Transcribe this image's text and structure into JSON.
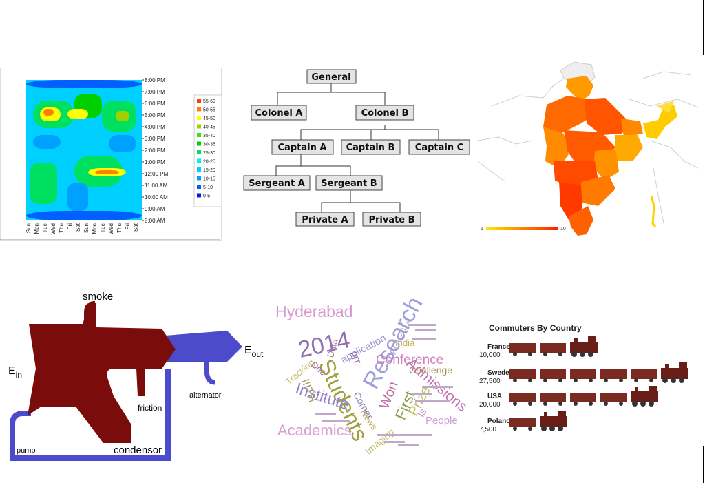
{
  "heatmap": {
    "time_labels": [
      "8:00 PM",
      "7:00 PM",
      "6:00 PM",
      "5:00 PM",
      "4:00 PM",
      "3:00 PM",
      "2:00 PM",
      "1:00 PM",
      "12:00 PM",
      "11:00 AM",
      "10:00 AM",
      "9:00 AM",
      "8:00 AM"
    ],
    "day_labels": [
      "Sun",
      "Mon",
      "Tue",
      "Wed",
      "Thu",
      "Fri",
      "Sat",
      "Sun",
      "Mon",
      "Tue",
      "Wed",
      "Thu",
      "Fri",
      "Sat"
    ],
    "legend": [
      {
        "label": "55-60",
        "color": "#ff4000"
      },
      {
        "label": "50-55",
        "color": "#ff8000"
      },
      {
        "label": "45-50",
        "color": "#ffff00"
      },
      {
        "label": "40-45",
        "color": "#a0d000"
      },
      {
        "label": "35-40",
        "color": "#40e000"
      },
      {
        "label": "30-35",
        "color": "#00d000"
      },
      {
        "label": "25-30",
        "color": "#00e060"
      },
      {
        "label": "20-25",
        "color": "#00f0f0"
      },
      {
        "label": "15-20",
        "color": "#00d0ff"
      },
      {
        "label": "10-15",
        "color": "#00a0ff"
      },
      {
        "label": "5-10",
        "color": "#0060ff"
      },
      {
        "label": "0-5",
        "color": "#0020e0"
      }
    ]
  },
  "org_chart": {
    "general": "General",
    "colonel_a": "Colonel A",
    "colonel_b": "Colonel B",
    "captain_a": "Captain A",
    "captain_b": "Captain B",
    "captain_c": "Captain C",
    "sergeant_a": "Sergeant A",
    "sergeant_b": "Sergeant B",
    "private_a": "Private A",
    "private_b": "Private B"
  },
  "india_map": {
    "legend_min": "1",
    "legend_max": "10",
    "colors": {
      "low": "#ffe800",
      "high": "#ff2000"
    }
  },
  "sankey": {
    "smoke": "smoke",
    "e_in": "E",
    "e_in_sub": "in",
    "e_out": "E",
    "e_out_sub": "out",
    "alternator": "alternator",
    "friction": "friction",
    "condensor": "condensor",
    "pump": "pump",
    "colors": {
      "heat": "#7b0c0c",
      "work": "#4b4bcc"
    }
  },
  "wordcloud": {
    "words": [
      {
        "text": "Hyderabad",
        "color": "#d89ad0"
      },
      {
        "text": "2014",
        "color": "#9070b0"
      },
      {
        "text": "Research",
        "color": "#a0a0d8"
      },
      {
        "text": "Students",
        "color": "#a0a040"
      },
      {
        "text": "Conference",
        "color": "#d080c0"
      },
      {
        "text": "Admissions",
        "color": "#c070b0"
      },
      {
        "text": "Institute",
        "color": "#9080c8"
      },
      {
        "text": "Academics",
        "color": "#d8a0d0"
      },
      {
        "text": "Won",
        "color": "#c070a0"
      },
      {
        "text": "First",
        "color": "#90a050"
      },
      {
        "text": "Prize",
        "color": "#c0c060"
      },
      {
        "text": "Challenge",
        "color": "#b09060"
      },
      {
        "text": "People",
        "color": "#d0a0d8"
      },
      {
        "text": "India",
        "color": "#c8b060"
      },
      {
        "text": "application",
        "color": "#a090d0"
      },
      {
        "text": "Data",
        "color": "#a080a0"
      },
      {
        "text": "IIIT",
        "color": "#8060a0"
      },
      {
        "text": "IIITH",
        "color": "#a0a060"
      },
      {
        "text": "Tracking",
        "color": "#c0c070"
      },
      {
        "text": "Dec",
        "color": "#a07090"
      },
      {
        "text": "PCV2014",
        "color": "#b0a0d0"
      },
      {
        "text": "News",
        "color": "#c0b060"
      },
      {
        "text": "Corner",
        "color": "#9080b0"
      },
      {
        "text": "Imaging",
        "color": "#c0c070"
      },
      {
        "text": "Is",
        "color": "#c090c0"
      }
    ]
  },
  "commuters": {
    "title": "Commuters By Country",
    "rows": [
      {
        "country": "France",
        "value": "10,000",
        "cars": 2
      },
      {
        "country": "Sweden",
        "value": "27,500",
        "cars": 5
      },
      {
        "country": "USA",
        "value": "20,000",
        "cars": 4
      },
      {
        "country": "Poland",
        "value": "7,500",
        "cars": 1
      }
    ],
    "colors": {
      "car": "#7a2a20",
      "engine": "#6a1e18"
    }
  }
}
